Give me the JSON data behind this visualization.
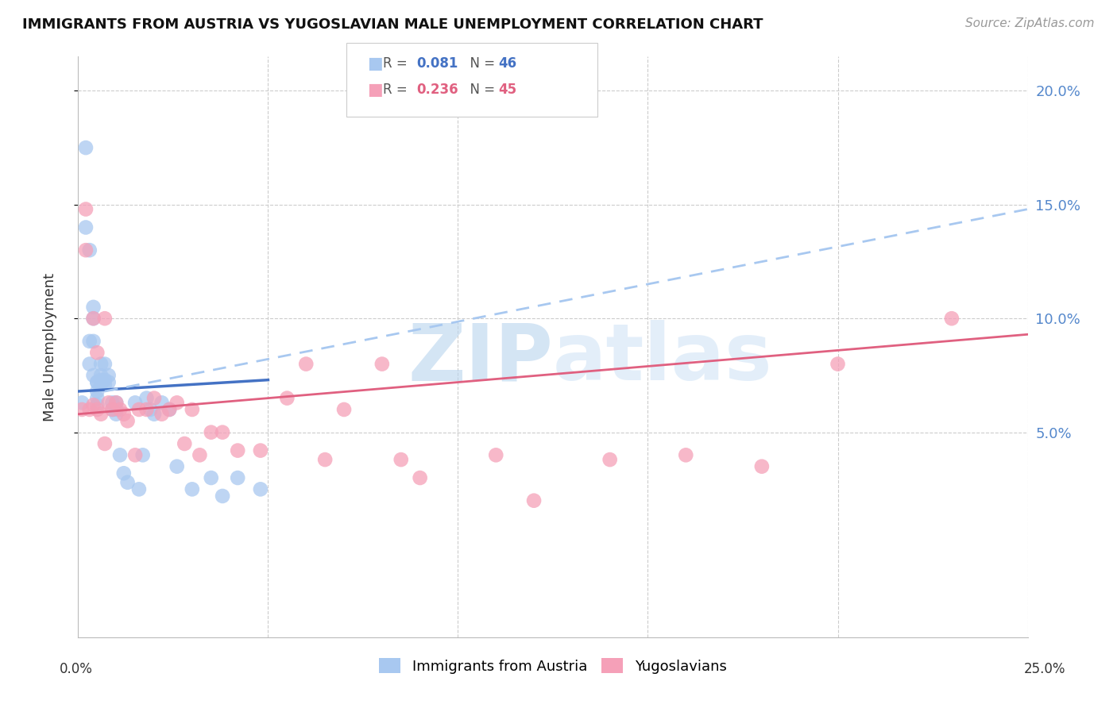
{
  "title": "IMMIGRANTS FROM AUSTRIA VS YUGOSLAVIAN MALE UNEMPLOYMENT CORRELATION CHART",
  "source": "Source: ZipAtlas.com",
  "ylabel": "Male Unemployment",
  "ytick_labels": [
    "5.0%",
    "10.0%",
    "15.0%",
    "20.0%"
  ],
  "yticks": [
    0.05,
    0.1,
    0.15,
    0.2
  ],
  "xtick_labels": [
    "0.0%",
    "25.0%"
  ],
  "xlim": [
    0.0,
    0.25
  ],
  "ylim": [
    -0.04,
    0.215
  ],
  "blue_color": "#a8c8f0",
  "pink_color": "#f5a0b8",
  "blue_line_color": "#4472c4",
  "pink_line_color": "#e06080",
  "dashed_line_color": "#a8c8f0",
  "watermark_color": "#d8eaf8",
  "austria_x": [
    0.001,
    0.002,
    0.002,
    0.003,
    0.003,
    0.003,
    0.004,
    0.004,
    0.004,
    0.004,
    0.005,
    0.005,
    0.005,
    0.005,
    0.005,
    0.006,
    0.006,
    0.006,
    0.006,
    0.007,
    0.007,
    0.007,
    0.008,
    0.008,
    0.009,
    0.009,
    0.01,
    0.01,
    0.01,
    0.011,
    0.012,
    0.013,
    0.015,
    0.016,
    0.017,
    0.018,
    0.019,
    0.02,
    0.022,
    0.024,
    0.026,
    0.03,
    0.035,
    0.038,
    0.042,
    0.048
  ],
  "austria_y": [
    0.063,
    0.175,
    0.14,
    0.13,
    0.09,
    0.08,
    0.105,
    0.1,
    0.09,
    0.075,
    0.072,
    0.072,
    0.068,
    0.065,
    0.062,
    0.08,
    0.075,
    0.073,
    0.071,
    0.08,
    0.073,
    0.071,
    0.075,
    0.072,
    0.063,
    0.06,
    0.063,
    0.06,
    0.058,
    0.04,
    0.032,
    0.028,
    0.063,
    0.025,
    0.04,
    0.065,
    0.06,
    0.058,
    0.063,
    0.06,
    0.035,
    0.025,
    0.03,
    0.022,
    0.03,
    0.025
  ],
  "yugoslav_x": [
    0.001,
    0.002,
    0.002,
    0.003,
    0.004,
    0.004,
    0.005,
    0.005,
    0.006,
    0.007,
    0.007,
    0.008,
    0.009,
    0.01,
    0.011,
    0.012,
    0.013,
    0.015,
    0.016,
    0.018,
    0.02,
    0.022,
    0.024,
    0.026,
    0.028,
    0.03,
    0.032,
    0.035,
    0.038,
    0.042,
    0.048,
    0.055,
    0.06,
    0.065,
    0.07,
    0.08,
    0.085,
    0.09,
    0.11,
    0.12,
    0.14,
    0.16,
    0.18,
    0.2,
    0.23
  ],
  "yugoslav_y": [
    0.06,
    0.148,
    0.13,
    0.06,
    0.1,
    0.062,
    0.085,
    0.06,
    0.058,
    0.1,
    0.045,
    0.063,
    0.06,
    0.063,
    0.06,
    0.058,
    0.055,
    0.04,
    0.06,
    0.06,
    0.065,
    0.058,
    0.06,
    0.063,
    0.045,
    0.06,
    0.04,
    0.05,
    0.05,
    0.042,
    0.042,
    0.065,
    0.08,
    0.038,
    0.06,
    0.08,
    0.038,
    0.03,
    0.04,
    0.02,
    0.038,
    0.04,
    0.035,
    0.08,
    0.1
  ],
  "blue_line_x0": 0.0,
  "blue_line_y0": 0.068,
  "blue_line_x1": 0.05,
  "blue_line_y1": 0.073,
  "pink_line_x0": 0.0,
  "pink_line_y0": 0.058,
  "pink_line_x1": 0.25,
  "pink_line_y1": 0.093,
  "dash_line_x0": 0.007,
  "dash_line_y0": 0.068,
  "dash_line_x1": 0.25,
  "dash_line_y1": 0.148
}
